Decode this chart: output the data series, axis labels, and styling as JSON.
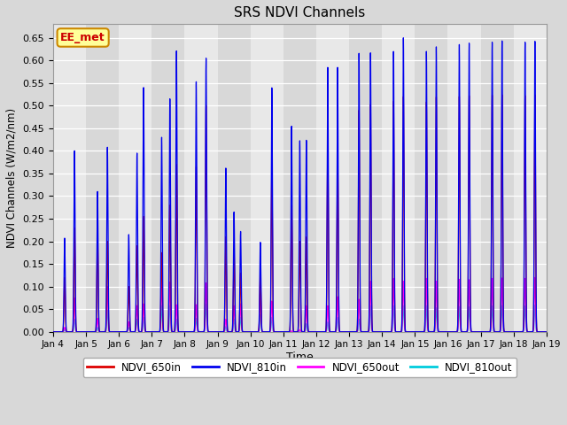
{
  "title": "SRS NDVI Channels",
  "xlabel": "Time",
  "ylabel": "NDVI Channels (W/m2/nm)",
  "annotation": "EE_met",
  "ylim": [
    0.0,
    0.68
  ],
  "yticks": [
    0.0,
    0.05,
    0.1,
    0.15,
    0.2,
    0.25,
    0.3,
    0.35,
    0.4,
    0.45,
    0.5,
    0.55,
    0.6,
    0.65
  ],
  "xticklabels": [
    "Jan 4",
    "Jan 5",
    "Jan 6",
    "Jan 7",
    "Jan 8",
    "Jan 9",
    "Jan 10",
    "Jan 11",
    "Jan 12",
    "Jan 13",
    "Jan 14",
    "Jan 15",
    "Jan 16",
    "Jan 17",
    "Jan 18",
    "Jan 19"
  ],
  "colors": {
    "650in": "#dd0000",
    "810in": "#0000ee",
    "650out": "#ff00ff",
    "810out": "#00ccdd"
  },
  "daily_peaks": [
    {
      "day": 0.35,
      "i810": 0.207,
      "i650": 0.12,
      "o650": 0.01,
      "o810": 0.005
    },
    {
      "day": 0.65,
      "i810": 0.4,
      "i650": 0.23,
      "o650": 0.075,
      "o810": 0.028
    },
    {
      "day": 1.35,
      "i810": 0.31,
      "i650": 0.21,
      "o650": 0.03,
      "o810": 0.01
    },
    {
      "day": 1.65,
      "i810": 0.408,
      "i650": 0.2,
      "o650": 0.1,
      "o810": 0.048
    },
    {
      "day": 2.3,
      "i810": 0.215,
      "i650": 0.1,
      "o650": 0.022,
      "o810": 0.01
    },
    {
      "day": 2.55,
      "i810": 0.395,
      "i650": 0.19,
      "o650": 0.058,
      "o810": 0.028
    },
    {
      "day": 2.75,
      "i810": 0.54,
      "i650": 0.255,
      "o650": 0.062,
      "o810": 0.032
    },
    {
      "day": 3.3,
      "i810": 0.43,
      "i650": 0.175,
      "o650": 0.112,
      "o810": 0.058
    },
    {
      "day": 3.55,
      "i810": 0.515,
      "i650": 0.28,
      "o650": 0.11,
      "o810": 0.058
    },
    {
      "day": 3.75,
      "i810": 0.621,
      "i650": 0.37,
      "o650": 0.06,
      "o810": 0.028
    },
    {
      "day": 4.35,
      "i810": 0.553,
      "i650": 0.365,
      "o650": 0.06,
      "o810": 0.03
    },
    {
      "day": 4.65,
      "i810": 0.605,
      "i650": 0.5,
      "o650": 0.108,
      "o810": 0.062
    },
    {
      "day": 5.25,
      "i810": 0.362,
      "i650": 0.21,
      "o650": 0.028,
      "o810": 0.012
    },
    {
      "day": 5.5,
      "i810": 0.265,
      "i650": 0.18,
      "o650": 0.058,
      "o810": 0.028
    },
    {
      "day": 5.7,
      "i810": 0.222,
      "i650": 0.13,
      "o650": 0.062,
      "o810": 0.032
    },
    {
      "day": 6.3,
      "i810": 0.198,
      "i650": 0.128,
      "o650": 0.092,
      "o810": 0.038
    },
    {
      "day": 6.65,
      "i810": 0.54,
      "i650": 0.37,
      "o650": 0.068,
      "o810": 0.032
    },
    {
      "day": 7.25,
      "i810": 0.455,
      "i650": 0.28,
      "o650": 0.002,
      "o810": 0.001
    },
    {
      "day": 7.5,
      "i810": 0.423,
      "i650": 0.2,
      "o650": 0.005,
      "o810": 0.002
    },
    {
      "day": 7.7,
      "i810": 0.424,
      "i650": 0.21,
      "o650": 0.058,
      "o810": 0.018
    },
    {
      "day": 8.35,
      "i810": 0.585,
      "i650": 0.42,
      "o650": 0.058,
      "o810": 0.022
    },
    {
      "day": 8.65,
      "i810": 0.585,
      "i650": 0.39,
      "o650": 0.078,
      "o810": 0.032
    },
    {
      "day": 9.3,
      "i810": 0.616,
      "i650": 0.49,
      "o650": 0.072,
      "o810": 0.028
    },
    {
      "day": 9.65,
      "i810": 0.617,
      "i650": 0.503,
      "o650": 0.112,
      "o810": 0.058
    },
    {
      "day": 10.35,
      "i810": 0.62,
      "i650": 0.51,
      "o650": 0.118,
      "o810": 0.058
    },
    {
      "day": 10.65,
      "i810": 0.65,
      "i650": 0.52,
      "o650": 0.112,
      "o810": 0.058
    },
    {
      "day": 11.35,
      "i810": 0.62,
      "i650": 0.508,
      "o650": 0.118,
      "o810": 0.058
    },
    {
      "day": 11.65,
      "i810": 0.63,
      "i650": 0.519,
      "o650": 0.112,
      "o810": 0.053
    },
    {
      "day": 12.35,
      "i810": 0.635,
      "i650": 0.52,
      "o650": 0.116,
      "o810": 0.056
    },
    {
      "day": 12.65,
      "i810": 0.638,
      "i650": 0.522,
      "o650": 0.115,
      "o810": 0.055
    },
    {
      "day": 13.35,
      "i810": 0.64,
      "i650": 0.523,
      "o650": 0.118,
      "o810": 0.057
    },
    {
      "day": 13.65,
      "i810": 0.643,
      "i650": 0.524,
      "o650": 0.119,
      "o810": 0.058
    },
    {
      "day": 14.35,
      "i810": 0.64,
      "i650": 0.522,
      "o650": 0.118,
      "o810": 0.057
    },
    {
      "day": 14.65,
      "i810": 0.642,
      "i650": 0.524,
      "o650": 0.12,
      "o810": 0.059
    }
  ]
}
